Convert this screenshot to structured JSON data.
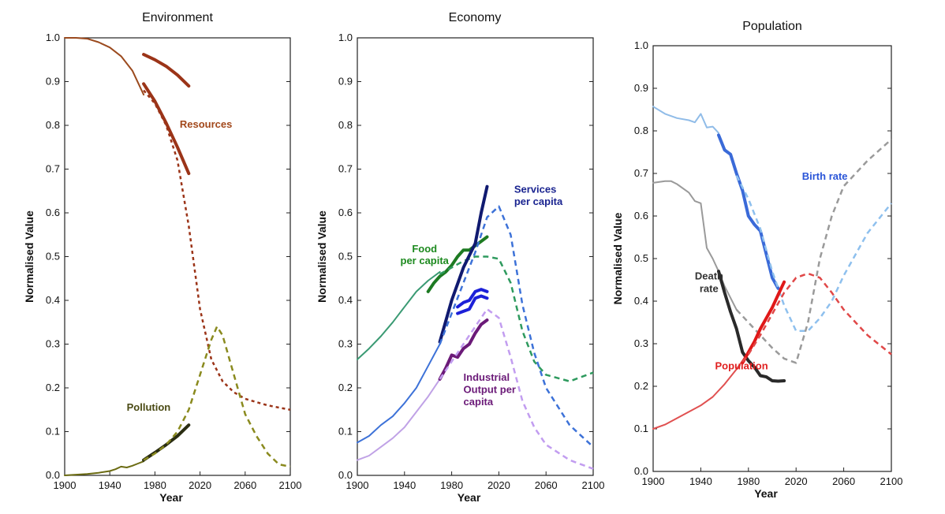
{
  "chart_data": [
    {
      "type": "line",
      "title": "Environment",
      "xlabel": "Year",
      "ylabel": "Normalised Value",
      "xlim": [
        1900,
        2100
      ],
      "ylim": [
        0,
        1.0
      ],
      "xticks": [
        "1900",
        "1940",
        "1980",
        "2020",
        "2060",
        "2100"
      ],
      "yticks": [
        "0.0",
        "0.1",
        "0.2",
        "0.3",
        "0.4",
        "0.5",
        "0.6",
        "0.7",
        "0.8",
        "0.9",
        "1.0"
      ],
      "series": [
        {
          "name": "Resources (observed)",
          "color": "#9b4a1e",
          "style": "solid",
          "width": 2,
          "x": [
            1900,
            1910,
            1920,
            1930,
            1940,
            1950,
            1960,
            1970
          ],
          "y": [
            1.0,
            1.0,
            0.998,
            0.99,
            0.978,
            0.958,
            0.925,
            0.87
          ]
        },
        {
          "name": "Resources (data A)",
          "color": "#9b3418",
          "style": "solid",
          "width": 4,
          "x": [
            1970,
            1980,
            1990,
            2000,
            2010
          ],
          "y": [
            0.962,
            0.95,
            0.935,
            0.915,
            0.89
          ]
        },
        {
          "name": "Resources (data B)",
          "color": "#9b3418",
          "style": "solid",
          "width": 4,
          "x": [
            1970,
            1980,
            1990,
            2000,
            2010
          ],
          "y": [
            0.895,
            0.855,
            0.805,
            0.75,
            0.69
          ]
        },
        {
          "name": "Resources (model)",
          "color": "#9b3418",
          "style": "dotted",
          "width": 2.5,
          "x": [
            1970,
            1980,
            1990,
            2000,
            2010,
            2020,
            2030,
            2040,
            2050,
            2060,
            2080,
            2100
          ],
          "y": [
            0.88,
            0.85,
            0.8,
            0.72,
            0.57,
            0.38,
            0.265,
            0.215,
            0.19,
            0.175,
            0.16,
            0.15
          ]
        },
        {
          "name": "Pollution (observed)",
          "color": "#6b6b12",
          "style": "solid",
          "width": 2,
          "x": [
            1900,
            1920,
            1930,
            1940,
            1945,
            1950,
            1955,
            1960,
            1965,
            1970
          ],
          "y": [
            0.0,
            0.003,
            0.006,
            0.01,
            0.014,
            0.02,
            0.018,
            0.022,
            0.027,
            0.032
          ]
        },
        {
          "name": "Pollution (data)",
          "color": "#2a2d12",
          "style": "solid",
          "width": 4,
          "x": [
            1970,
            1980,
            1990,
            2000,
            2010
          ],
          "y": [
            0.035,
            0.052,
            0.07,
            0.09,
            0.115
          ]
        },
        {
          "name": "Pollution (model)",
          "color": "#8a8a1e",
          "style": "dashed",
          "width": 2.5,
          "x": [
            1970,
            1980,
            1990,
            2000,
            2010,
            2020,
            2030,
            2035,
            2040,
            2050,
            2060,
            2070,
            2080,
            2090,
            2100
          ],
          "y": [
            0.035,
            0.05,
            0.07,
            0.1,
            0.15,
            0.23,
            0.31,
            0.34,
            0.32,
            0.23,
            0.14,
            0.09,
            0.05,
            0.025,
            0.02
          ]
        }
      ],
      "annotations": [
        {
          "text": "Resources",
          "x": 1.0,
          "y": 0.0,
          "color": "#a2481b",
          "anchor_year": 2002,
          "anchor_value": 0.795
        },
        {
          "text": "Pollution",
          "color": "#4a4a14",
          "anchor_year": 1955,
          "anchor_value": 0.148
        }
      ]
    },
    {
      "type": "line",
      "title": "Economy",
      "xlabel": "Year",
      "ylabel": "Normalised Value",
      "xlim": [
        1900,
        2100
      ],
      "ylim": [
        0,
        1.0
      ],
      "xticks": [
        "1900",
        "1940",
        "1980",
        "2020",
        "2060",
        "2100"
      ],
      "yticks": [
        "0.0",
        "0.1",
        "0.2",
        "0.3",
        "0.4",
        "0.5",
        "0.6",
        "0.7",
        "0.8",
        "0.9",
        "1.0"
      ],
      "series": [
        {
          "name": "Food per capita (observed)",
          "color": "#3a9a73",
          "style": "solid",
          "width": 2,
          "x": [
            1900,
            1910,
            1920,
            1930,
            1940,
            1950,
            1960,
            1970
          ],
          "y": [
            0.265,
            0.29,
            0.318,
            0.35,
            0.385,
            0.42,
            0.445,
            0.465
          ]
        },
        {
          "name": "Food per capita (data)",
          "color": "#1d7a22",
          "style": "solid",
          "width": 4,
          "x": [
            1960,
            1965,
            1970,
            1975,
            1980,
            1985,
            1990,
            1995,
            2000,
            2005,
            2010
          ],
          "y": [
            0.42,
            0.44,
            0.455,
            0.465,
            0.48,
            0.5,
            0.515,
            0.515,
            0.525,
            0.535,
            0.545
          ]
        },
        {
          "name": "Food per capita (model)",
          "color": "#2e9a5e",
          "style": "dashed",
          "width": 2.5,
          "x": [
            1970,
            1980,
            1990,
            2000,
            2010,
            2020,
            2030,
            2040,
            2050,
            2060,
            2080,
            2100
          ],
          "y": [
            0.46,
            0.475,
            0.49,
            0.5,
            0.5,
            0.495,
            0.44,
            0.33,
            0.26,
            0.23,
            0.215,
            0.235
          ]
        },
        {
          "name": "Services per capita (observed)",
          "color": "#3d72d8",
          "style": "solid",
          "width": 2,
          "x": [
            1900,
            1910,
            1920,
            1930,
            1940,
            1950,
            1960,
            1970
          ],
          "y": [
            0.075,
            0.09,
            0.115,
            0.135,
            0.165,
            0.2,
            0.25,
            0.3
          ]
        },
        {
          "name": "Services per capita (data)",
          "color": "#101a70",
          "style": "solid",
          "width": 4,
          "x": [
            1970,
            1980,
            1990,
            2000,
            2005,
            2010
          ],
          "y": [
            0.305,
            0.4,
            0.475,
            0.53,
            0.6,
            0.66
          ]
        },
        {
          "name": "Services per capita (model)",
          "color": "#3d72d8",
          "style": "dashed",
          "width": 2.5,
          "x": [
            1970,
            1980,
            1990,
            2000,
            2010,
            2020,
            2030,
            2040,
            2050,
            2060,
            2080,
            2100
          ],
          "y": [
            0.3,
            0.37,
            0.44,
            0.51,
            0.59,
            0.615,
            0.55,
            0.39,
            0.28,
            0.2,
            0.115,
            0.065
          ]
        },
        {
          "name": "Industrial output (data A)",
          "color": "#1c20d8",
          "style": "solid",
          "width": 4,
          "x": [
            1985,
            1990,
            1995,
            2000,
            2005,
            2010
          ],
          "y": [
            0.37,
            0.375,
            0.38,
            0.405,
            0.41,
            0.405
          ]
        },
        {
          "name": "Industrial output (data B)",
          "color": "#1c20d8",
          "style": "solid",
          "width": 4,
          "x": [
            1985,
            1990,
            1995,
            2000,
            2005,
            2010
          ],
          "y": [
            0.385,
            0.395,
            0.4,
            0.42,
            0.425,
            0.42
          ]
        },
        {
          "name": "Industrial Output per capita (observed)",
          "color": "#c0a2e6",
          "style": "solid",
          "width": 2,
          "x": [
            1900,
            1910,
            1920,
            1930,
            1940,
            1950,
            1960,
            1970
          ],
          "y": [
            0.035,
            0.045,
            0.065,
            0.085,
            0.11,
            0.145,
            0.18,
            0.22
          ]
        },
        {
          "name": "Industrial Output per capita (data)",
          "color": "#6b1a78",
          "style": "solid",
          "width": 4,
          "x": [
            1970,
            1975,
            1980,
            1985,
            1990,
            1995,
            2000,
            2005,
            2010
          ],
          "y": [
            0.22,
            0.245,
            0.275,
            0.27,
            0.29,
            0.3,
            0.325,
            0.345,
            0.355
          ]
        },
        {
          "name": "Industrial Output per capita (model)",
          "color": "#c29df0",
          "style": "dashed",
          "width": 2.5,
          "x": [
            1970,
            1980,
            1990,
            2000,
            2010,
            2020,
            2030,
            2040,
            2050,
            2060,
            2080,
            2100
          ],
          "y": [
            0.22,
            0.26,
            0.3,
            0.34,
            0.38,
            0.36,
            0.27,
            0.17,
            0.11,
            0.07,
            0.035,
            0.015
          ]
        }
      ],
      "annotations": [
        {
          "text": "Services",
          "color": "#1a2490",
          "anchor_year": 2033,
          "anchor_value": 0.646
        },
        {
          "text": "per capita",
          "color": "#1a2490",
          "anchor_year": 2033,
          "anchor_value": 0.618
        },
        {
          "text": "Food",
          "color": "#1d8a1f",
          "anchor_year": 1957,
          "anchor_value": 0.51
        },
        {
          "text": "per capita",
          "color": "#1d8a1f",
          "anchor_year": 1957,
          "anchor_value": 0.483
        },
        {
          "text": "Industrial",
          "color": "#6b1a78",
          "anchor_year": 1990,
          "anchor_value": 0.216
        },
        {
          "text": "Output per",
          "color": "#6b1a78",
          "anchor_year": 1990,
          "anchor_value": 0.188
        },
        {
          "text": "capita",
          "color": "#6b1a78",
          "anchor_year": 1990,
          "anchor_value": 0.16
        }
      ]
    },
    {
      "type": "line",
      "title": "Population",
      "xlabel": "Year",
      "ylabel": "Normalised Value",
      "xlim": [
        1900,
        2100
      ],
      "ylim": [
        0,
        1.0
      ],
      "xticks": [
        "1900",
        "1940",
        "1980",
        "2020",
        "2060",
        "2100"
      ],
      "yticks": [
        "0.0",
        "0.1",
        "0.2",
        "0.3",
        "0.4",
        "0.5",
        "0.6",
        "0.7",
        "0.8",
        "0.9",
        "1.0"
      ],
      "series": [
        {
          "name": "Birth rate (observed)",
          "color": "#90bce8",
          "style": "solid",
          "width": 2,
          "x": [
            1900,
            1910,
            1920,
            1930,
            1935,
            1940,
            1945,
            1950,
            1955
          ],
          "y": [
            0.857,
            0.84,
            0.83,
            0.825,
            0.82,
            0.84,
            0.808,
            0.81,
            0.795
          ]
        },
        {
          "name": "Birth rate (data)",
          "color": "#3a6ad8",
          "style": "solid",
          "width": 4,
          "x": [
            1955,
            1960,
            1965,
            1970,
            1975,
            1980,
            1985,
            1990,
            1995,
            2000,
            2005
          ],
          "y": [
            0.79,
            0.755,
            0.745,
            0.7,
            0.66,
            0.6,
            0.58,
            0.565,
            0.51,
            0.455,
            0.43
          ]
        },
        {
          "name": "Birth rate (model)",
          "color": "#8ec0ee",
          "style": "dashed",
          "width": 2.5,
          "x": [
            1970,
            1980,
            1990,
            2000,
            2010,
            2020,
            2030,
            2040,
            2050,
            2060,
            2080,
            2100
          ],
          "y": [
            0.695,
            0.64,
            0.57,
            0.47,
            0.39,
            0.33,
            0.33,
            0.36,
            0.4,
            0.46,
            0.56,
            0.63
          ]
        },
        {
          "name": "Death rate (observed)",
          "color": "#9a9a9a",
          "style": "solid",
          "width": 2,
          "x": [
            1900,
            1910,
            1915,
            1920,
            1930,
            1935,
            1940,
            1945,
            1950,
            1955,
            1960,
            1970
          ],
          "y": [
            0.678,
            0.682,
            0.682,
            0.675,
            0.655,
            0.635,
            0.63,
            0.525,
            0.5,
            0.47,
            0.435,
            0.38
          ]
        },
        {
          "name": "Death rate (data)",
          "color": "#2a2a2a",
          "style": "solid",
          "width": 4,
          "x": [
            1955,
            1960,
            1965,
            1970,
            1975,
            1980,
            1985,
            1990,
            1995,
            2000,
            2005,
            2010
          ],
          "y": [
            0.47,
            0.42,
            0.375,
            0.335,
            0.28,
            0.26,
            0.245,
            0.225,
            0.222,
            0.213,
            0.212,
            0.213
          ]
        },
        {
          "name": "Death rate (model)",
          "color": "#9a9a9a",
          "style": "dashed",
          "width": 2.5,
          "x": [
            1970,
            1980,
            1990,
            2000,
            2010,
            2020,
            2030,
            2040,
            2050,
            2060,
            2080,
            2100
          ],
          "y": [
            0.38,
            0.35,
            0.32,
            0.29,
            0.265,
            0.255,
            0.35,
            0.5,
            0.6,
            0.67,
            0.73,
            0.78
          ]
        },
        {
          "name": "Population (observed)",
          "color": "#e05050",
          "style": "solid",
          "width": 2,
          "x": [
            1900,
            1910,
            1920,
            1930,
            1940,
            1950,
            1960,
            1970,
            1980
          ],
          "y": [
            0.1,
            0.11,
            0.125,
            0.14,
            0.155,
            0.175,
            0.205,
            0.24,
            0.28
          ]
        },
        {
          "name": "Population (data)",
          "color": "#e01818",
          "style": "solid",
          "width": 4,
          "x": [
            1975,
            1980,
            1985,
            1990,
            1995,
            2000,
            2005,
            2010
          ],
          "y": [
            0.255,
            0.28,
            0.305,
            0.335,
            0.36,
            0.385,
            0.415,
            0.445
          ]
        },
        {
          "name": "Population (model)",
          "color": "#e04848",
          "style": "dashed",
          "width": 2.5,
          "x": [
            1970,
            1980,
            1990,
            2000,
            2010,
            2020,
            2030,
            2040,
            2050,
            2060,
            2080,
            2100
          ],
          "y": [
            0.24,
            0.275,
            0.32,
            0.37,
            0.42,
            0.455,
            0.465,
            0.455,
            0.42,
            0.38,
            0.32,
            0.275
          ]
        }
      ],
      "annotations": [
        {
          "text": "Birth rate",
          "color": "#2a55d8",
          "anchor_year": 2025,
          "anchor_value": 0.685
        },
        {
          "text": "Death",
          "color": "#333333",
          "anchor_year": 1935,
          "anchor_value": 0.451
        },
        {
          "text": "rate",
          "color": "#333333",
          "anchor_year": 1939,
          "anchor_value": 0.421
        },
        {
          "text": "Population",
          "color": "#e02020",
          "anchor_year": 1952,
          "anchor_value": 0.24
        }
      ]
    }
  ]
}
